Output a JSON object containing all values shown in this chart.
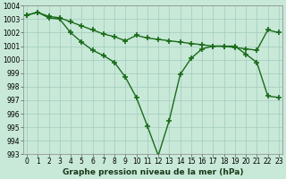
{
  "series1_x": [
    0,
    1,
    2,
    3,
    4,
    5,
    6,
    7,
    8,
    9,
    10,
    11,
    12,
    13,
    14,
    15,
    16,
    17,
    18,
    19,
    20,
    21,
    22,
    23
  ],
  "series1_y": [
    1003.3,
    1003.5,
    1003.2,
    1003.1,
    1002.8,
    1002.5,
    1002.2,
    1001.9,
    1001.7,
    1001.4,
    1001.8,
    1001.6,
    1001.5,
    1001.4,
    1001.3,
    1001.2,
    1001.1,
    1001.0,
    1001.0,
    1000.9,
    1000.8,
    1000.7,
    1002.2,
    1002.0
  ],
  "series2_x": [
    0,
    1,
    2,
    3,
    4,
    5,
    6,
    7,
    8,
    9,
    10,
    11,
    12,
    13,
    14,
    15,
    16,
    17,
    18,
    19,
    20,
    21,
    22,
    23
  ],
  "series2_y": [
    1003.3,
    1003.5,
    1003.1,
    1003.0,
    1002.0,
    1001.3,
    1000.7,
    1000.3,
    999.8,
    998.7,
    997.2,
    995.1,
    992.9,
    995.5,
    998.9,
    1000.1,
    1000.8,
    1001.0,
    1001.0,
    1001.0,
    1000.4,
    999.8,
    997.3,
    997.2
  ],
  "ylim_min": 993,
  "ylim_max": 1004,
  "xlim_min": 0,
  "xlim_max": 23,
  "yticks": [
    993,
    994,
    995,
    996,
    997,
    998,
    999,
    1000,
    1001,
    1002,
    1003,
    1004
  ],
  "xticks": [
    0,
    1,
    2,
    3,
    4,
    5,
    6,
    7,
    8,
    9,
    10,
    11,
    12,
    13,
    14,
    15,
    16,
    17,
    18,
    19,
    20,
    21,
    22,
    23
  ],
  "xlabel": "Graphe pression niveau de la mer (hPa)",
  "line_color": "#1a6b1a",
  "bg_color": "#c8e8d8",
  "grid_color": "#a0ccbc",
  "marker": "+",
  "marker_size": 4,
  "marker_lw": 1.2,
  "line_width": 1.0,
  "xlabel_fontsize": 6.5,
  "tick_fontsize": 5.5
}
